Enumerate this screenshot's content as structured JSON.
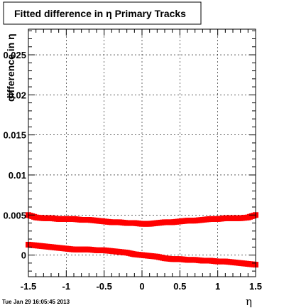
{
  "chart_data": {
    "type": "scatter",
    "title": "Fitted difference in η  Primary Tracks",
    "xlabel": "η",
    "ylabel": "difference in η",
    "xlim": [
      -1.5,
      1.5
    ],
    "ylim": [
      -0.0027,
      0.0282
    ],
    "grid": true,
    "x_ticks": [
      -1.5,
      -1,
      -0.5,
      0,
      0.5,
      1,
      1.5
    ],
    "x_tick_labels": [
      "-1.5",
      "-1",
      "-0.5",
      "0",
      "0.5",
      "1",
      "1.5"
    ],
    "y_ticks": [
      0,
      0.005,
      0.01,
      0.015,
      0.02,
      0.025
    ],
    "y_tick_labels": [
      "0",
      "0.005",
      "0.01",
      "0.015",
      "0.02",
      "0.025"
    ],
    "marker_color": "#ff0000",
    "series": [
      {
        "points": [
          [
            -1.5,
            0.005
          ],
          [
            -1.4,
            0.0047
          ],
          [
            -1.3,
            0.0046
          ],
          [
            -1.2,
            0.0046
          ],
          [
            -1.1,
            0.0045
          ],
          [
            -1.0,
            0.0045
          ],
          [
            -0.9,
            0.0045
          ],
          [
            -0.8,
            0.0044
          ],
          [
            -0.7,
            0.0044
          ],
          [
            -0.6,
            0.0043
          ],
          [
            -0.5,
            0.0042
          ],
          [
            -0.4,
            0.0041
          ],
          [
            -0.3,
            0.0041
          ],
          [
            -0.2,
            0.004
          ],
          [
            -0.1,
            0.004
          ],
          [
            0.0,
            0.0039
          ],
          [
            0.1,
            0.0039
          ],
          [
            0.2,
            0.004
          ],
          [
            0.3,
            0.0041
          ],
          [
            0.4,
            0.0041
          ],
          [
            0.5,
            0.0042
          ],
          [
            0.6,
            0.0043
          ],
          [
            0.7,
            0.0043
          ],
          [
            0.8,
            0.0044
          ],
          [
            0.9,
            0.0045
          ],
          [
            1.0,
            0.0045
          ],
          [
            1.1,
            0.0046
          ],
          [
            1.2,
            0.0046
          ],
          [
            1.3,
            0.0046
          ],
          [
            1.4,
            0.0047
          ],
          [
            1.5,
            0.005
          ]
        ]
      },
      {
        "points": [
          [
            -1.5,
            0.0013
          ],
          [
            -1.4,
            0.0012
          ],
          [
            -1.3,
            0.0011
          ],
          [
            -1.2,
            0.001
          ],
          [
            -1.1,
            0.0009
          ],
          [
            -1.0,
            0.0008
          ],
          [
            -0.9,
            0.0007
          ],
          [
            -0.8,
            0.0007
          ],
          [
            -0.7,
            0.0007
          ],
          [
            -0.6,
            0.0006
          ],
          [
            -0.5,
            0.0006
          ],
          [
            -0.4,
            0.0005
          ],
          [
            -0.3,
            0.0004
          ],
          [
            -0.2,
            0.0003
          ],
          [
            -0.1,
            0.0001
          ],
          [
            0.0,
            0.0
          ],
          [
            0.1,
            -0.0001
          ],
          [
            0.2,
            -0.0002
          ],
          [
            0.3,
            -0.0004
          ],
          [
            0.4,
            -0.0005
          ],
          [
            0.5,
            -0.0005
          ],
          [
            0.6,
            -0.0006
          ],
          [
            0.7,
            -0.0006
          ],
          [
            0.8,
            -0.0007
          ],
          [
            0.9,
            -0.0007
          ],
          [
            1.0,
            -0.0008
          ],
          [
            1.1,
            -0.0008
          ],
          [
            1.2,
            -0.0009
          ],
          [
            1.3,
            -0.001
          ],
          [
            1.4,
            -0.0011
          ],
          [
            1.5,
            -0.0012
          ]
        ]
      }
    ]
  },
  "footer": {
    "timestamp": "Tue Jan 29 16:05:45 2013"
  }
}
